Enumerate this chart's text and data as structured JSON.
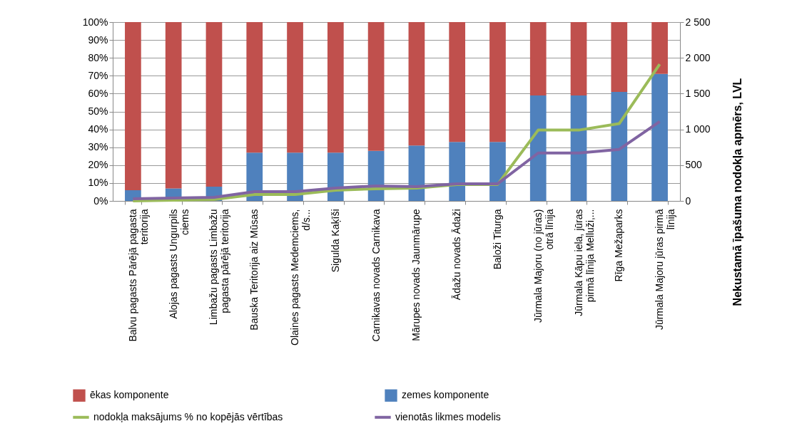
{
  "chart_data": {
    "type": "bar",
    "stacked": true,
    "y2label": "Nekustamā īpašuma nodokļa apmērs, LVL",
    "categories": [
      "Balvu pagasts Pārējā pagasta teritorija",
      "Alojas pagasts Ungurpils ciems",
      "Limbažu pagasts Limbažu pagasta pārējā teritorija",
      "Bauska Teritorija aiz Mūsas",
      "Olaines pagasts Medemciems, d/s...",
      "Sigulda Kaķīši",
      "Carnikavas novads Carnikava",
      "Mārupes novads Jaunmārupe",
      "Ādažu novads Ādaži",
      "Baloži Titurga",
      "Jūrmala Majoru (no jūras) otrā līnija",
      "Jūrmala Kāpu iela, jūras pirmā līnija Melluži,...",
      "Rīga Mežaparks",
      "Jūrmala Majoru jūras pirmā līnija"
    ],
    "series": [
      {
        "name": "zemes komponente",
        "color": "#4f81bd",
        "values": [
          6,
          7,
          8,
          27,
          27,
          27,
          28,
          31,
          33,
          33,
          59,
          59,
          61,
          71
        ]
      },
      {
        "name": "ēkas komponente",
        "color": "#c0504d",
        "values": [
          94,
          93,
          92,
          73,
          73,
          73,
          72,
          69,
          67,
          67,
          41,
          41,
          39,
          29
        ]
      },
      {
        "name": "nodokļa maksājums % no kopējās vērtības",
        "type": "line",
        "axis": "y2",
        "color": "#9bbb59",
        "values": [
          0,
          10,
          20,
          90,
          90,
          150,
          170,
          180,
          230,
          230,
          990,
          990,
          1080,
          1910
        ]
      },
      {
        "name": "vienotās likmes modelis",
        "type": "line",
        "axis": "y2",
        "color": "#8064a2",
        "values": [
          30,
          40,
          50,
          130,
          130,
          180,
          210,
          200,
          240,
          240,
          670,
          670,
          720,
          1110
        ]
      }
    ],
    "ylim": [
      0,
      100
    ],
    "yticks": [
      {
        "value": 0,
        "label": "0%"
      },
      {
        "value": 10,
        "label": "10%"
      },
      {
        "value": 20,
        "label": "20%"
      },
      {
        "value": 30,
        "label": "30%"
      },
      {
        "value": 40,
        "label": "40%"
      },
      {
        "value": 50,
        "label": "50%"
      },
      {
        "value": 60,
        "label": "60%"
      },
      {
        "value": 70,
        "label": "70%"
      },
      {
        "value": 80,
        "label": "80%"
      },
      {
        "value": 90,
        "label": "90%"
      },
      {
        "value": 100,
        "label": "100%"
      }
    ],
    "y2lim": [
      0,
      2500
    ],
    "y2ticks": [
      0,
      500,
      {
        "value": 1000,
        "label": "1 000"
      },
      {
        "value": 1500,
        "label": "1 500"
      },
      {
        "value": 2000,
        "label": "2 000"
      },
      {
        "value": 2500,
        "label": "2 500"
      }
    ],
    "grid": "y",
    "legend": "bottom",
    "marker": "none",
    "line_style": "solid"
  }
}
